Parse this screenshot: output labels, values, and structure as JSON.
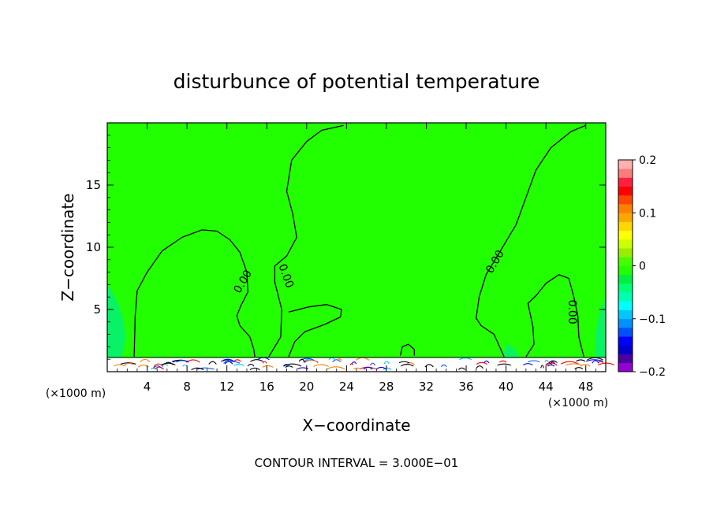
{
  "chart_data": {
    "type": "heatmap",
    "title": "disturbunce of potential temperature",
    "xlabel": "X−coordinate",
    "ylabel": "Z−coordinate",
    "x_unit_left": "(×1000 m)",
    "x_unit_right": "(×1000 m)",
    "footer": "CONTOUR INTERVAL = 3.000E−01",
    "xlim": [
      0,
      50
    ],
    "ylim": [
      0,
      20
    ],
    "x_ticks": [
      4,
      8,
      12,
      16,
      20,
      24,
      28,
      32,
      36,
      40,
      44,
      48
    ],
    "y_ticks": [
      5,
      10,
      15
    ],
    "field_value": 0,
    "contour_label": "0.00",
    "contours": [
      {
        "label": "0.00",
        "points": [
          [
            2.7,
            1.2
          ],
          [
            2.8,
            4.5
          ],
          [
            3.0,
            6.5
          ],
          [
            4.0,
            8.0
          ],
          [
            5.5,
            9.7
          ],
          [
            7.5,
            10.8
          ],
          [
            9.5,
            11.4
          ],
          [
            11,
            11.3
          ],
          [
            12.3,
            10.6
          ],
          [
            13.3,
            9.6
          ],
          [
            14,
            8.0
          ],
          [
            14.1,
            6.4
          ],
          [
            13.4,
            5.3
          ],
          [
            13,
            4.5
          ],
          [
            13.3,
            3.7
          ],
          [
            14.3,
            2.8
          ],
          [
            14.7,
            1.8
          ],
          [
            14.8,
            1.2
          ]
        ]
      },
      {
        "label": "0.00",
        "points": [
          [
            16.2,
            1.2
          ],
          [
            17.4,
            2.8
          ],
          [
            17.5,
            5.0
          ],
          [
            16.8,
            7.2
          ],
          [
            16.8,
            8.5
          ],
          [
            18.0,
            9.3
          ],
          [
            19.0,
            10.8
          ],
          [
            18.6,
            12.7
          ],
          [
            18.0,
            14.5
          ],
          [
            18.5,
            17.0
          ],
          [
            20.0,
            18.5
          ],
          [
            21.5,
            19.4
          ],
          [
            23.7,
            19.8
          ]
        ]
      },
      {
        "label": "0.00",
        "points": [
          [
            18.2,
            4.8
          ],
          [
            20.2,
            5.2
          ],
          [
            22.0,
            5.4
          ],
          [
            23.5,
            5.0
          ],
          [
            23.4,
            4.4
          ],
          [
            21.8,
            3.8
          ],
          [
            19.8,
            3.2
          ],
          [
            18.8,
            2.4
          ],
          [
            18.2,
            1.2
          ]
        ]
      },
      {
        "label": "0.00",
        "points": [
          [
            39.8,
            1.2
          ],
          [
            38.8,
            3.0
          ],
          [
            37.5,
            3.7
          ],
          [
            37.0,
            4.3
          ],
          [
            37.3,
            6.0
          ],
          [
            38.0,
            7.8
          ],
          [
            39.5,
            9.8
          ],
          [
            41.0,
            11.8
          ],
          [
            42.0,
            14.0
          ],
          [
            43.0,
            16.2
          ],
          [
            44.5,
            18.0
          ],
          [
            46.5,
            19.3
          ],
          [
            48.0,
            19.8
          ]
        ]
      },
      {
        "label": "0.00",
        "points": [
          [
            42.0,
            1.2
          ],
          [
            42.8,
            2.2
          ],
          [
            42.7,
            3.6
          ],
          [
            42.2,
            5.5
          ],
          [
            43.0,
            6.1
          ],
          [
            44.0,
            7.1
          ],
          [
            45.3,
            7.8
          ],
          [
            46.3,
            7.5
          ],
          [
            46.8,
            6.0
          ],
          [
            47.2,
            4.5
          ],
          [
            47.3,
            2.8
          ],
          [
            47.8,
            1.2
          ]
        ]
      },
      {
        "label": "",
        "points": [
          [
            29.4,
            1.3
          ],
          [
            29.6,
            2.0
          ],
          [
            30.2,
            2.2
          ],
          [
            30.8,
            1.8
          ],
          [
            30.8,
            1.3
          ]
        ]
      }
    ],
    "colorbar": {
      "ticks": [
        "0.2",
        "0.1",
        "0",
        "−0.1",
        "−0.2"
      ],
      "min": -0.2,
      "max": 0.2,
      "colors": [
        "#9400d3",
        "#4b00a0",
        "#0000cd",
        "#0000ff",
        "#0050ff",
        "#0090ff",
        "#00c8ff",
        "#00ffff",
        "#00ffb0",
        "#00ff78",
        "#00f040",
        "#22ff00",
        "#44ff00",
        "#99ee00",
        "#ccff00",
        "#ffff00",
        "#ffd700",
        "#ffa500",
        "#ff7f00",
        "#ff4500",
        "#ff0000",
        "#ff2040",
        "#ff7a7a",
        "#ffb0b0"
      ]
    },
    "background_color": "#22ff00",
    "anomaly_color_cool": "#00ee88"
  }
}
